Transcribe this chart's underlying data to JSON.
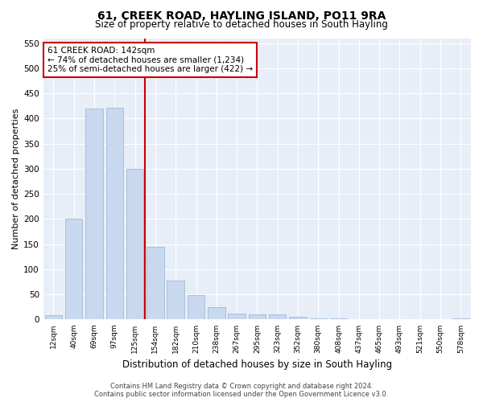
{
  "title": "61, CREEK ROAD, HAYLING ISLAND, PO11 9RA",
  "subtitle": "Size of property relative to detached houses in South Hayling",
  "xlabel": "Distribution of detached houses by size in South Hayling",
  "ylabel": "Number of detached properties",
  "bin_labels": [
    "12sqm",
    "40sqm",
    "69sqm",
    "97sqm",
    "125sqm",
    "154sqm",
    "182sqm",
    "210sqm",
    "238sqm",
    "267sqm",
    "295sqm",
    "323sqm",
    "352sqm",
    "380sqm",
    "408sqm",
    "437sqm",
    "465sqm",
    "493sqm",
    "521sqm",
    "550sqm",
    "578sqm"
  ],
  "bar_values": [
    8,
    200,
    420,
    422,
    300,
    145,
    78,
    48,
    25,
    12,
    10,
    10,
    5,
    3,
    3,
    0,
    0,
    0,
    0,
    0,
    3
  ],
  "bar_color": "#c8d8ee",
  "bar_edge_color": "#a0bcd8",
  "vline_color": "#cc0000",
  "annotation_line1": "61 CREEK ROAD: 142sqm",
  "annotation_line2": "← 74% of detached houses are smaller (1,234)",
  "annotation_line3": "25% of semi-detached houses are larger (422) →",
  "annotation_box_color": "#ffffff",
  "annotation_box_edge_color": "#cc0000",
  "ylim": [
    0,
    560
  ],
  "yticks": [
    0,
    50,
    100,
    150,
    200,
    250,
    300,
    350,
    400,
    450,
    500,
    550
  ],
  "bg_color": "#e8eef7",
  "title_fontsize": 10,
  "subtitle_fontsize": 8.5,
  "footer_line1": "Contains HM Land Registry data © Crown copyright and database right 2024.",
  "footer_line2": "Contains public sector information licensed under the Open Government Licence v3.0."
}
